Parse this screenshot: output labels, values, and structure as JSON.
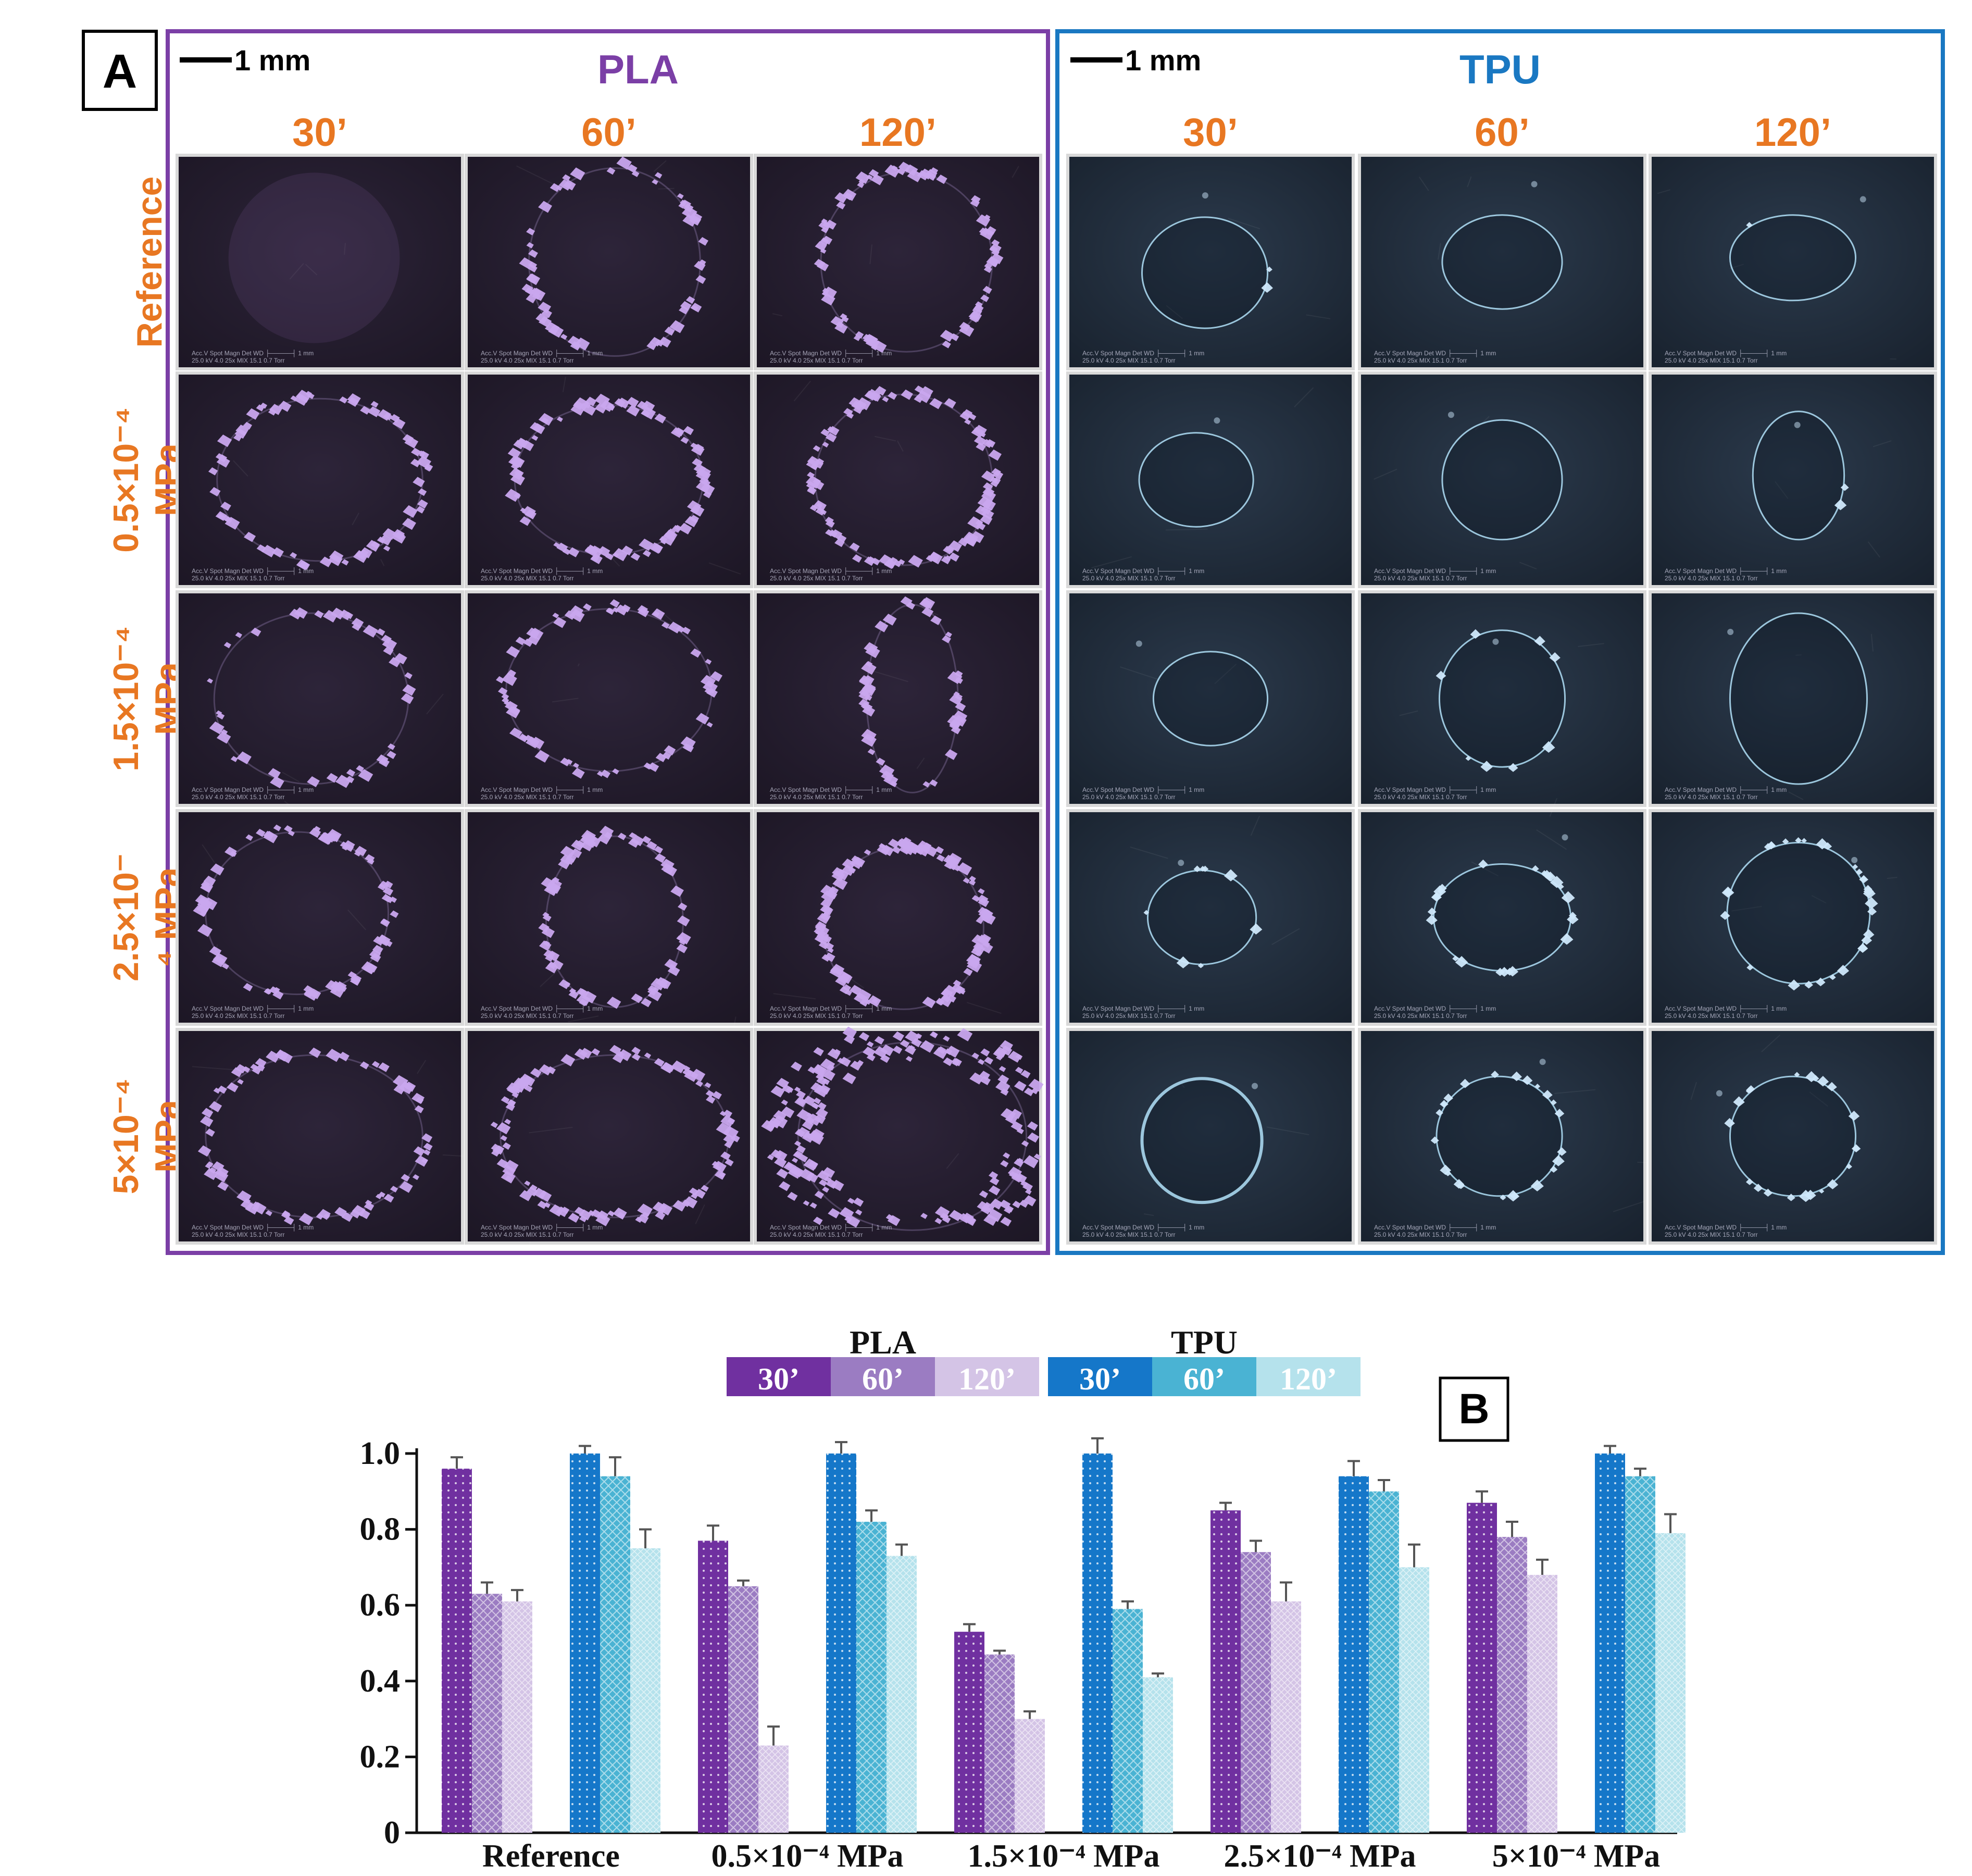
{
  "panel_a": {
    "label": "A",
    "scale_bar_label": "1 mm",
    "pla_title": "PLA",
    "tpu_title": "TPU",
    "time_headers": [
      "30’",
      "60’",
      "120’"
    ],
    "row_labels": [
      [
        "Reference"
      ],
      [
        "0.5×10⁻⁴",
        "MPa"
      ],
      [
        "1.5×10⁻⁴",
        "MPa"
      ],
      [
        "2.5×10⁻",
        "⁴ MPa"
      ],
      [
        "5×10⁻⁴",
        "MPa"
      ]
    ],
    "micrograph_caption": "Acc.V  Spot Magn   Det  WD  ├─────┤  1 mm",
    "micrograph_caption2": "25.0 kV 4.0   25x      MIX  15.1  0.7 Torr"
  },
  "colors": {
    "pla_frame": "#7b3fa6",
    "tpu_frame": "#1a78c2",
    "row_label": "#e87722",
    "time_header": "#e87722",
    "pla_30": "#7030a0",
    "pla_60": "#9b7cc2",
    "pla_120": "#d4c4e6",
    "tpu_30": "#1577c9",
    "tpu_60": "#4ab3d3",
    "tpu_120": "#b5e2ec",
    "pla_micro_bg": "#2a2236",
    "pla_particle": "#c9a7ee",
    "tpu_micro_bg": "#1f2a38",
    "tpu_ring": "#a9d7ee"
  },
  "chart_data": {
    "type": "bar",
    "panel_label": "B",
    "categories": [
      "Reference",
      "0.5×10⁻⁴ MPa",
      "1.5×10⁻⁴ MPa",
      "2.5×10⁻⁴ MPa",
      "5×10⁻⁴ MPa"
    ],
    "legend_groups": [
      {
        "name": "PLA",
        "entries": [
          "30’",
          "60’",
          "120’"
        ]
      },
      {
        "name": "TPU",
        "entries": [
          "30’",
          "60’",
          "120’"
        ]
      }
    ],
    "series": [
      {
        "group": "PLA",
        "time": "30’",
        "values": [
          0.96,
          0.77,
          0.53,
          0.85,
          0.87
        ],
        "errors": [
          0.03,
          0.04,
          0.02,
          0.02,
          0.03
        ]
      },
      {
        "group": "PLA",
        "time": "60’",
        "values": [
          0.63,
          0.65,
          0.47,
          0.74,
          0.78
        ],
        "errors": [
          0.03,
          0.015,
          0.01,
          0.03,
          0.04
        ]
      },
      {
        "group": "PLA",
        "time": "120’",
        "values": [
          0.61,
          0.23,
          0.3,
          0.61,
          0.68
        ],
        "errors": [
          0.03,
          0.05,
          0.02,
          0.05,
          0.04
        ]
      },
      {
        "group": "TPU",
        "time": "30’",
        "values": [
          1.0,
          1.0,
          1.0,
          0.94,
          1.0
        ],
        "errors": [
          0.02,
          0.03,
          0.04,
          0.04,
          0.02
        ]
      },
      {
        "group": "TPU",
        "time": "60’",
        "values": [
          0.94,
          0.82,
          0.59,
          0.9,
          0.94
        ],
        "errors": [
          0.05,
          0.03,
          0.02,
          0.03,
          0.02
        ]
      },
      {
        "group": "TPU",
        "time": "120’",
        "values": [
          0.75,
          0.73,
          0.41,
          0.7,
          0.79
        ],
        "errors": [
          0.05,
          0.03,
          0.01,
          0.06,
          0.05
        ]
      }
    ],
    "ylim": [
      0,
      1.0
    ],
    "yticks": [
      "0",
      "0.2",
      "0.4",
      "0.6",
      "0.8",
      "1.0"
    ],
    "grid": false
  }
}
